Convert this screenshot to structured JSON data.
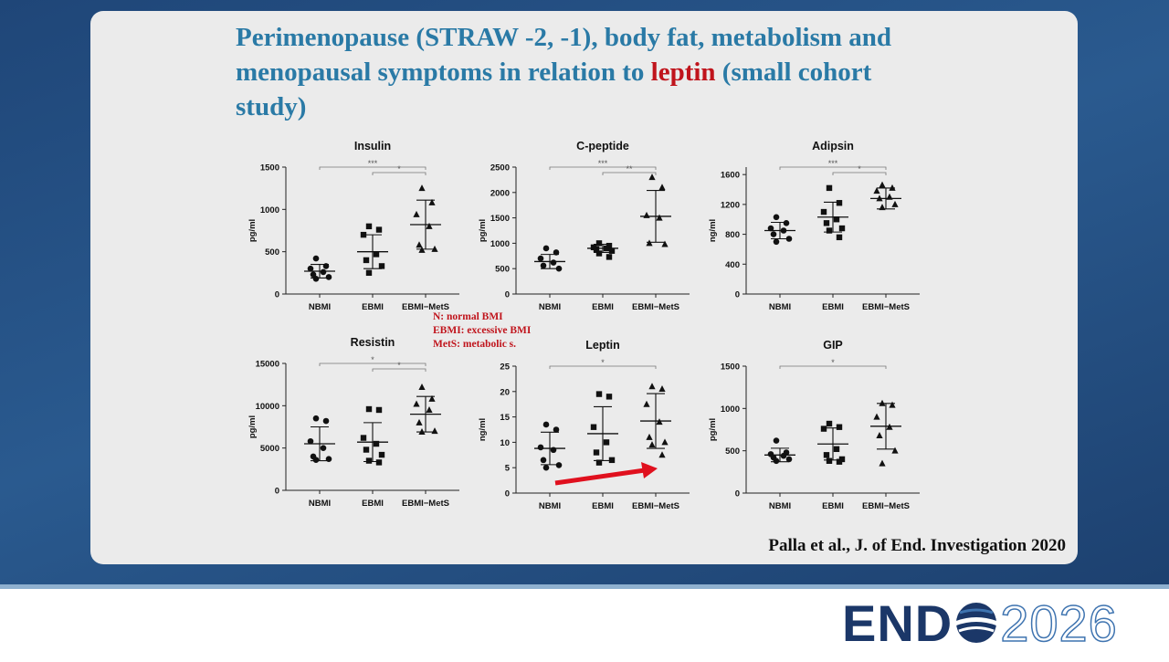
{
  "slide_title": [
    "Perimenopause (STRAW -2, -1), body fat, metabolism and menopausal symptoms in relation to ",
    "leptin",
    " (small cohort study)"
  ],
  "note": [
    "N: normal BMI",
    "EBMI: excessive BMI",
    "MetS: metabolic s."
  ],
  "citation": "Palla et al., J. of End. Investigation 2020",
  "logo": [
    "END",
    "2026"
  ],
  "chart_data": [
    {
      "type": "dotplot",
      "title": "Insulin",
      "y_label": "pg/ml",
      "categories": [
        "NBMI",
        "EBMI",
        "EBMI−MetS"
      ],
      "markers": [
        "circle",
        "square",
        "triangle"
      ],
      "color": "#111111",
      "ylim": [
        0,
        1500
      ],
      "yticks": [
        0,
        500,
        1000,
        1500
      ],
      "groups": [
        {
          "values": [
            420,
            330,
            300,
            260,
            230,
            200,
            180
          ],
          "mean": 270,
          "sd": 80
        },
        {
          "values": [
            800,
            760,
            700,
            470,
            400,
            330,
            250
          ],
          "mean": 500,
          "sd": 200
        },
        {
          "values": [
            1250,
            1080,
            940,
            800,
            580,
            530,
            520
          ],
          "mean": 820,
          "sd": 290
        }
      ],
      "brackets": [
        {
          "from": 0,
          "to": 2,
          "label": "***"
        },
        {
          "from": 1,
          "to": 2,
          "label": "*"
        }
      ]
    },
    {
      "type": "dotplot",
      "title": "C-peptide",
      "y_label": "pg/ml",
      "categories": [
        "NBMI",
        "EBMI",
        "EBMI−MetS"
      ],
      "markers": [
        "circle",
        "square",
        "triangle"
      ],
      "color": "#111111",
      "ylim": [
        0,
        2500
      ],
      "yticks": [
        0,
        500,
        1000,
        1500,
        2000,
        2500
      ],
      "groups": [
        {
          "values": [
            900,
            820,
            700,
            620,
            560,
            500
          ],
          "mean": 640,
          "sd": 140
        },
        {
          "values": [
            1000,
            950,
            920,
            900,
            880,
            850,
            800,
            730
          ],
          "mean": 900,
          "sd": 80
        },
        {
          "values": [
            2300,
            2100,
            1550,
            1500,
            1000,
            980
          ],
          "mean": 1530,
          "sd": 510
        }
      ],
      "brackets": [
        {
          "from": 0,
          "to": 2,
          "label": "***"
        },
        {
          "from": 1,
          "to": 2,
          "label": "**"
        }
      ]
    },
    {
      "type": "dotplot",
      "title": "Adipsin",
      "y_label": "ng/ml",
      "categories": [
        "NBMI",
        "EBMI",
        "EBMI−MetS"
      ],
      "markers": [
        "circle",
        "square",
        "triangle"
      ],
      "color": "#111111",
      "ylim": [
        0,
        1700
      ],
      "yticks": [
        0,
        400,
        800,
        1200,
        1600
      ],
      "groups": [
        {
          "values": [
            1030,
            950,
            880,
            850,
            800,
            740,
            700
          ],
          "mean": 850,
          "sd": 110
        },
        {
          "values": [
            1420,
            1220,
            1100,
            1000,
            950,
            880,
            850,
            760
          ],
          "mean": 1030,
          "sd": 200
        },
        {
          "values": [
            1460,
            1420,
            1380,
            1300,
            1280,
            1200,
            1160
          ],
          "mean": 1280,
          "sd": 140
        }
      ],
      "brackets": [
        {
          "from": 0,
          "to": 2,
          "label": "***"
        },
        {
          "from": 1,
          "to": 2,
          "label": "*"
        }
      ]
    },
    {
      "type": "dotplot",
      "title": "Resistin",
      "y_label": "pg/ml",
      "categories": [
        "NBMI",
        "EBMI",
        "EBMI−MetS"
      ],
      "markers": [
        "circle",
        "square",
        "triangle"
      ],
      "color": "#111111",
      "ylim": [
        0,
        15000
      ],
      "yticks": [
        0,
        5000,
        10000,
        15000
      ],
      "groups": [
        {
          "values": [
            8500,
            8200,
            5800,
            5000,
            4000,
            3700,
            3600
          ],
          "mean": 5500,
          "sd": 2000
        },
        {
          "values": [
            9600,
            9500,
            6200,
            5500,
            4800,
            4200,
            3500,
            3300
          ],
          "mean": 5700,
          "sd": 2300
        },
        {
          "values": [
            12200,
            10800,
            10200,
            9500,
            8000,
            7000,
            6900
          ],
          "mean": 9000,
          "sd": 2100
        }
      ],
      "brackets": [
        {
          "from": 0,
          "to": 2,
          "label": "*"
        },
        {
          "from": 1,
          "to": 2,
          "label": "*"
        }
      ]
    },
    {
      "type": "dotplot",
      "title": "Leptin",
      "y_label": "ng/ml",
      "categories": [
        "NBMI",
        "EBMI",
        "EBMI−MetS"
      ],
      "markers": [
        "circle",
        "square",
        "triangle"
      ],
      "color": "#111111",
      "ylim": [
        0,
        25
      ],
      "yticks": [
        0,
        5,
        10,
        15,
        20,
        25
      ],
      "groups": [
        {
          "values": [
            13.5,
            12.5,
            9,
            8.5,
            6.5,
            5.5,
            5
          ],
          "mean": 8.8,
          "sd": 3.2
        },
        {
          "values": [
            19.5,
            19,
            13,
            10,
            8,
            6.5,
            6
          ],
          "mean": 11.7,
          "sd": 5.3
        },
        {
          "values": [
            21,
            20.5,
            17.5,
            14,
            11,
            10,
            9.5,
            7.5
          ],
          "mean": 14.2,
          "sd": 5.4
        }
      ],
      "brackets": [
        {
          "from": 0,
          "to": 2,
          "label": "*"
        }
      ]
    },
    {
      "type": "dotplot",
      "title": "GIP",
      "y_label": "pg/ml",
      "categories": [
        "NBMI",
        "EBMI",
        "EBMI−MetS"
      ],
      "markers": [
        "circle",
        "square",
        "triangle"
      ],
      "color": "#111111",
      "ylim": [
        0,
        1500
      ],
      "yticks": [
        0,
        500,
        1000,
        1500
      ],
      "groups": [
        {
          "values": [
            620,
            480,
            460,
            440,
            420,
            400,
            380
          ],
          "mean": 450,
          "sd": 80
        },
        {
          "values": [
            820,
            780,
            760,
            520,
            450,
            400,
            380,
            370
          ],
          "mean": 580,
          "sd": 190
        },
        {
          "values": [
            1060,
            1040,
            900,
            780,
            680,
            500,
            350
          ],
          "mean": 790,
          "sd": 270
        }
      ],
      "brackets": [
        {
          "from": 0,
          "to": 2,
          "label": "*"
        }
      ]
    }
  ]
}
